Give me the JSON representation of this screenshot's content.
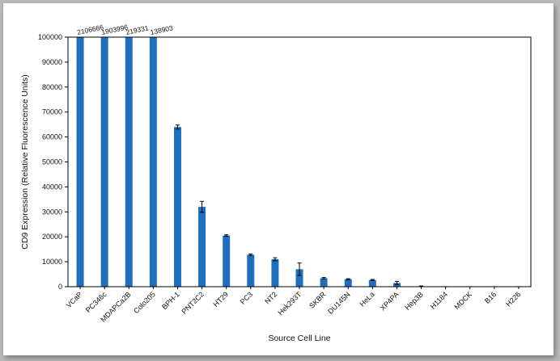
{
  "chart_data": {
    "type": "bar",
    "title": "",
    "xlabel": "Source Cell Line",
    "ylabel": "CD9 Expression (Relative Fluorescence Units)",
    "ylim": [
      0,
      100000
    ],
    "yticks": [
      0,
      10000,
      20000,
      30000,
      40000,
      50000,
      60000,
      70000,
      80000,
      90000,
      100000
    ],
    "grid": false,
    "legend": "none",
    "bar_color": "#1f6fbf",
    "categories": [
      "VCaP",
      "PC346c",
      "MDAPCa2B",
      "Colo205",
      "BPH-1",
      "PNT2C2",
      "HT29",
      "PC3",
      "NT2",
      "Hek293T",
      "SKBR",
      "DU145N",
      "HeLa",
      "XP4PA",
      "Hep3B",
      "H1184",
      "MDCK",
      "B16",
      "H226"
    ],
    "values": [
      2106666,
      1903996,
      219331,
      138903,
      64000,
      32000,
      20500,
      12800,
      11000,
      7000,
      3400,
      3000,
      2700,
      1500,
      150,
      50,
      30,
      20,
      10
    ],
    "errors": [
      0,
      0,
      0,
      0,
      800,
      2200,
      300,
      300,
      600,
      2500,
      300,
      200,
      200,
      600,
      150,
      0,
      0,
      0,
      0
    ],
    "data_labels": [
      "2106666",
      "1903996",
      "219331",
      "138903",
      "",
      "",
      "",
      "",
      "",
      "",
      "",
      "",
      "",
      "",
      "",
      "",
      "",
      "",
      ""
    ]
  }
}
